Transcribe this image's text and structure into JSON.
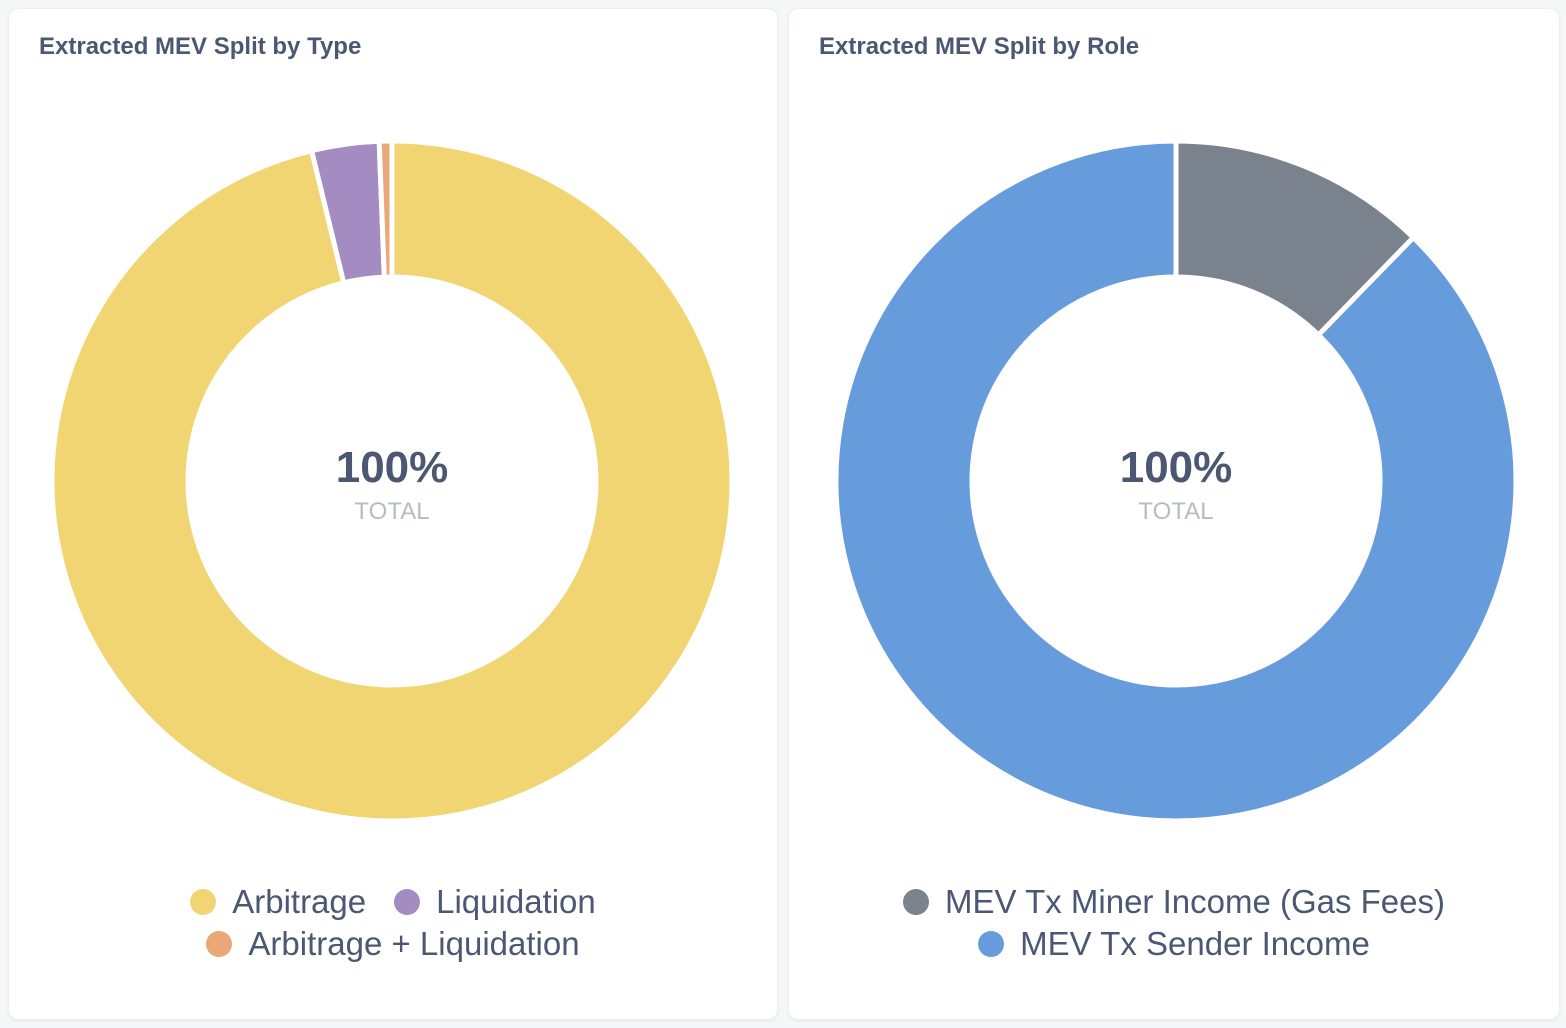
{
  "chart_data": [
    {
      "type": "pie",
      "variant": "donut",
      "title": "Extracted MEV Split by Type",
      "center_value": "100%",
      "center_label": "TOTAL",
      "series": [
        {
          "name": "Arbitrage",
          "value": 96.2,
          "color": "#f1d572"
        },
        {
          "name": "Liquidation",
          "value": 3.2,
          "color": "#a48cc3"
        },
        {
          "name": "Arbitrage + Liquidation",
          "value": 0.6,
          "color": "#e8a878"
        }
      ],
      "legend_rows": [
        [
          "Arbitrage",
          "Liquidation"
        ],
        [
          "Arbitrage + Liquidation"
        ]
      ]
    },
    {
      "type": "pie",
      "variant": "donut",
      "title": "Extracted MEV Split by Role",
      "center_value": "100%",
      "center_label": "TOTAL",
      "series": [
        {
          "name": "MEV Tx Miner Income (Gas Fees)",
          "value": 12.3,
          "color": "#7a828e"
        },
        {
          "name": "MEV Tx Sender Income",
          "value": 87.7,
          "color": "#669bdc"
        }
      ],
      "legend_rows": [
        [
          "MEV Tx Miner Income (Gas Fees)"
        ],
        [
          "MEV Tx Sender Income"
        ]
      ]
    }
  ]
}
